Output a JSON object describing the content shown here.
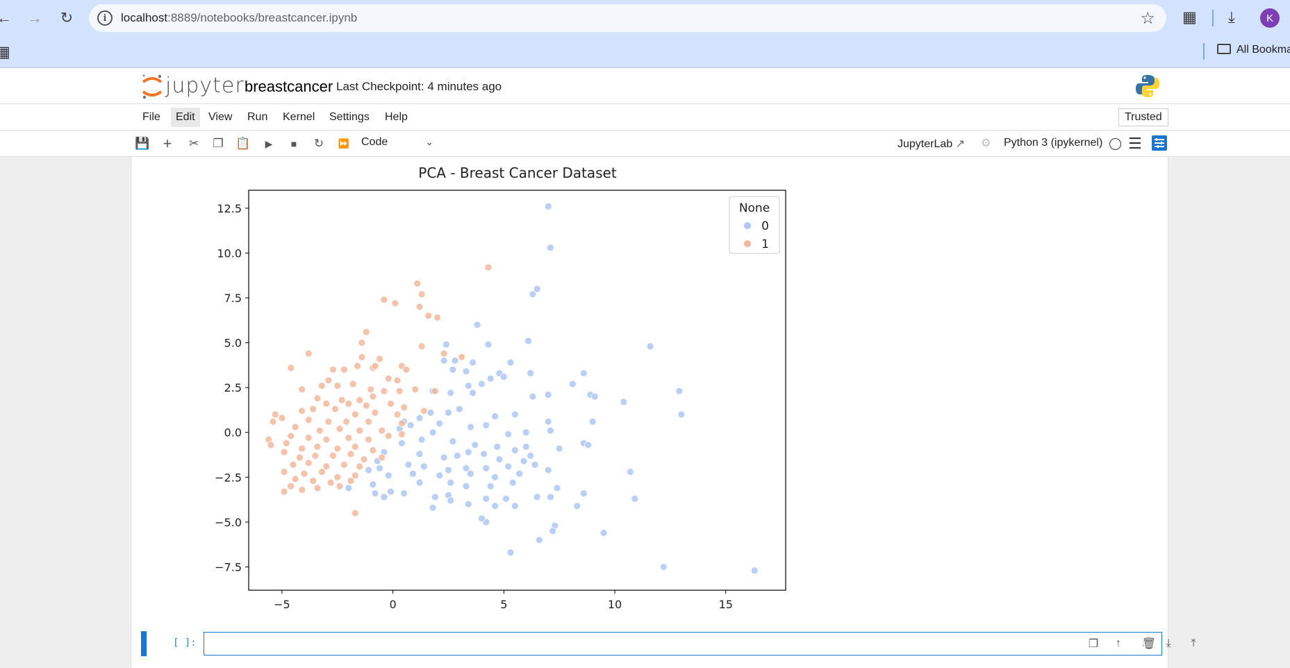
{
  "browser": {
    "url_host": "localhost",
    "url_path": ":8889/notebooks/breastcancer.ipynb",
    "avatar_letter": "K",
    "bookmarks_label": "All Bookma"
  },
  "header": {
    "app_name": "jupyter",
    "notebook_title": "breastcancer",
    "checkpoint": "Last Checkpoint: 4 minutes ago"
  },
  "menubar": {
    "items": [
      "File",
      "Edit",
      "View",
      "Run",
      "Kernel",
      "Settings",
      "Help"
    ],
    "trusted": "Trusted"
  },
  "toolbar": {
    "cell_type": "Code",
    "jupyterlab_link": "JupyterLab",
    "kernel": "Python 3 (ipykernel)"
  },
  "cell": {
    "prompt": "[ ]:"
  },
  "colors": {
    "class0": "#aec7f5",
    "class1": "#f3b79c",
    "accent": "#1976d2"
  },
  "chart_data": {
    "type": "scatter",
    "title": "PCA - Breast Cancer Dataset",
    "xlabel": "",
    "ylabel": "",
    "xlim": [
      -6.5,
      17.7
    ],
    "ylim": [
      -8.8,
      13.5
    ],
    "xticks": [
      -5,
      0,
      5,
      10,
      15
    ],
    "yticks": [
      -7.5,
      -5.0,
      -2.5,
      0.0,
      2.5,
      5.0,
      7.5,
      10.0,
      12.5
    ],
    "ytick_labels": [
      "−7.5",
      "−5.0",
      "−2.5",
      "0.0",
      "2.5",
      "5.0",
      "7.5",
      "10.0",
      "12.5"
    ],
    "xtick_labels": [
      "−5",
      "0",
      "5",
      "10",
      "15"
    ],
    "legend": {
      "title": "None",
      "placement": "top-right"
    },
    "series": [
      {
        "name": "0",
        "points": [
          [
            7.0,
            12.6
          ],
          [
            7.1,
            10.3
          ],
          [
            6.5,
            8.0
          ],
          [
            6.3,
            7.7
          ],
          [
            3.8,
            6.0
          ],
          [
            6.1,
            5.1
          ],
          [
            4.3,
            4.9
          ],
          [
            2.4,
            4.9
          ],
          [
            11.6,
            4.8
          ],
          [
            2.8,
            4.0
          ],
          [
            5.3,
            3.9
          ],
          [
            2.3,
            4.0
          ],
          [
            3.6,
            3.9
          ],
          [
            4.8,
            3.3
          ],
          [
            5.0,
            3.1
          ],
          [
            4.4,
            3.0
          ],
          [
            8.6,
            3.3
          ],
          [
            6.2,
            3.3
          ],
          [
            3.3,
            3.4
          ],
          [
            2.7,
            3.5
          ],
          [
            8.1,
            2.7
          ],
          [
            12.9,
            2.3
          ],
          [
            7.0,
            2.1
          ],
          [
            8.9,
            2.1
          ],
          [
            9.1,
            2.0
          ],
          [
            10.4,
            1.7
          ],
          [
            6.3,
            2.0
          ],
          [
            4.0,
            2.7
          ],
          [
            3.4,
            2.6
          ],
          [
            2.6,
            2.2
          ],
          [
            3.6,
            2.2
          ],
          [
            1.8,
            2.3
          ],
          [
            13.0,
            1.0
          ],
          [
            5.5,
            1.0
          ],
          [
            4.6,
            0.9
          ],
          [
            3.0,
            1.3
          ],
          [
            2.5,
            1.1
          ],
          [
            1.7,
            1.1
          ],
          [
            1.2,
            0.8
          ],
          [
            9.0,
            0.6
          ],
          [
            7.0,
            0.6
          ],
          [
            7.1,
            0.1
          ],
          [
            6.0,
            0.0
          ],
          [
            5.2,
            -0.1
          ],
          [
            4.2,
            0.4
          ],
          [
            3.5,
            0.3
          ],
          [
            2.1,
            0.5
          ],
          [
            1.8,
            0.0
          ],
          [
            0.8,
            0.4
          ],
          [
            0.5,
            0.6
          ],
          [
            0.3,
            0.2
          ],
          [
            8.6,
            -0.6
          ],
          [
            8.8,
            -0.7
          ],
          [
            7.5,
            -0.9
          ],
          [
            6.0,
            -0.8
          ],
          [
            5.5,
            -1.0
          ],
          [
            4.7,
            -0.8
          ],
          [
            3.7,
            -0.7
          ],
          [
            2.7,
            -0.5
          ],
          [
            1.3,
            -0.4
          ],
          [
            0.4,
            -0.6
          ],
          [
            6.2,
            -1.3
          ],
          [
            5.9,
            -1.6
          ],
          [
            4.8,
            -1.5
          ],
          [
            4.1,
            -1.2
          ],
          [
            3.4,
            -1.1
          ],
          [
            2.9,
            -1.3
          ],
          [
            2.3,
            -1.4
          ],
          [
            1.2,
            -1.2
          ],
          [
            -0.4,
            -1.1
          ],
          [
            -0.7,
            -1.6
          ],
          [
            6.4,
            -1.8
          ],
          [
            5.2,
            -1.9
          ],
          [
            4.2,
            -2.0
          ],
          [
            3.3,
            -2.0
          ],
          [
            2.5,
            -2.1
          ],
          [
            1.4,
            -1.9
          ],
          [
            0.7,
            -1.8
          ],
          [
            -0.6,
            -2.0
          ],
          [
            10.7,
            -2.2
          ],
          [
            7.0,
            -2.1
          ],
          [
            5.7,
            -2.3
          ],
          [
            4.6,
            -2.5
          ],
          [
            3.5,
            -2.3
          ],
          [
            2.1,
            -2.4
          ],
          [
            0.9,
            -2.3
          ],
          [
            -0.2,
            -2.4
          ],
          [
            -1.1,
            -2.1
          ],
          [
            7.4,
            -3.1
          ],
          [
            5.4,
            -2.8
          ],
          [
            4.4,
            -3.0
          ],
          [
            3.3,
            -3.0
          ],
          [
            2.6,
            -2.8
          ],
          [
            1.2,
            -2.8
          ],
          [
            -0.9,
            -2.9
          ],
          [
            -2.0,
            -3.1
          ],
          [
            10.9,
            -3.7
          ],
          [
            8.6,
            -3.4
          ],
          [
            7.1,
            -3.6
          ],
          [
            6.5,
            -3.6
          ],
          [
            5.1,
            -3.7
          ],
          [
            4.2,
            -3.7
          ],
          [
            2.5,
            -3.5
          ],
          [
            1.9,
            -3.6
          ],
          [
            0.5,
            -3.4
          ],
          [
            -0.1,
            -3.3
          ],
          [
            -0.8,
            -3.4
          ],
          [
            8.3,
            -4.1
          ],
          [
            5.5,
            -4.1
          ],
          [
            4.6,
            -4.1
          ],
          [
            3.4,
            -4.0
          ],
          [
            2.6,
            -3.8
          ],
          [
            1.8,
            -4.2
          ],
          [
            -0.4,
            -3.6
          ],
          [
            7.3,
            -5.2
          ],
          [
            7.2,
            -5.5
          ],
          [
            4.2,
            -5.0
          ],
          [
            4.0,
            -4.8
          ],
          [
            9.5,
            -5.6
          ],
          [
            6.6,
            -6.0
          ],
          [
            5.3,
            -6.7
          ],
          [
            12.2,
            -7.5
          ],
          [
            16.3,
            -7.7
          ]
        ]
      },
      {
        "name": "1",
        "points": [
          [
            4.3,
            9.2
          ],
          [
            1.1,
            8.3
          ],
          [
            1.3,
            7.7
          ],
          [
            -0.4,
            7.4
          ],
          [
            0.1,
            7.2
          ],
          [
            1.2,
            7.0
          ],
          [
            1.6,
            6.5
          ],
          [
            2.0,
            6.4
          ],
          [
            -1.2,
            5.6
          ],
          [
            -1.4,
            5.0
          ],
          [
            1.3,
            4.8
          ],
          [
            -0.6,
            4.1
          ],
          [
            -3.8,
            4.4
          ],
          [
            -1.4,
            4.2
          ],
          [
            2.3,
            4.4
          ],
          [
            3.1,
            4.2
          ],
          [
            -1.6,
            3.7
          ],
          [
            -0.9,
            3.6
          ],
          [
            -0.8,
            3.7
          ],
          [
            0.4,
            3.7
          ],
          [
            0.6,
            3.5
          ],
          [
            -4.6,
            3.6
          ],
          [
            -2.2,
            3.5
          ],
          [
            -2.7,
            3.5
          ],
          [
            -0.2,
            3.0
          ],
          [
            0.2,
            2.9
          ],
          [
            -2.9,
            2.9
          ],
          [
            -1.8,
            2.7
          ],
          [
            -2.5,
            2.6
          ],
          [
            -3.2,
            2.6
          ],
          [
            -4.1,
            2.4
          ],
          [
            -1.0,
            2.4
          ],
          [
            -0.4,
            2.3
          ],
          [
            0.3,
            2.3
          ],
          [
            1.0,
            2.4
          ],
          [
            1.9,
            2.3
          ],
          [
            -0.9,
            2.0
          ],
          [
            -1.5,
            1.8
          ],
          [
            -2.3,
            1.8
          ],
          [
            -3.4,
            1.9
          ],
          [
            -3.0,
            1.6
          ],
          [
            -2.0,
            1.6
          ],
          [
            -1.2,
            1.5
          ],
          [
            -0.1,
            1.6
          ],
          [
            0.5,
            1.4
          ],
          [
            1.4,
            1.2
          ],
          [
            -4.1,
            1.2
          ],
          [
            -3.6,
            1.3
          ],
          [
            -2.6,
            1.3
          ],
          [
            -1.7,
            1.0
          ],
          [
            -0.8,
            1.1
          ],
          [
            0.2,
            1.0
          ],
          [
            -5.3,
            1.0
          ],
          [
            -5.0,
            0.8
          ],
          [
            -3.8,
            0.7
          ],
          [
            -2.9,
            0.6
          ],
          [
            -2.1,
            0.6
          ],
          [
            -1.1,
            0.6
          ],
          [
            0.4,
            0.5
          ],
          [
            -5.4,
            0.6
          ],
          [
            -4.4,
            0.3
          ],
          [
            -3.3,
            0.1
          ],
          [
            -2.4,
            0.2
          ],
          [
            -1.5,
            0.1
          ],
          [
            -0.5,
            0.1
          ],
          [
            0.4,
            -0.1
          ],
          [
            -4.6,
            -0.2
          ],
          [
            -3.8,
            -0.3
          ],
          [
            -3.0,
            -0.4
          ],
          [
            -2.0,
            -0.3
          ],
          [
            -1.1,
            -0.4
          ],
          [
            -0.2,
            -0.2
          ],
          [
            -5.6,
            -0.4
          ],
          [
            -5.5,
            -0.7
          ],
          [
            -4.8,
            -0.6
          ],
          [
            -4.1,
            -0.9
          ],
          [
            -3.4,
            -0.8
          ],
          [
            -2.5,
            -0.9
          ],
          [
            -1.7,
            -0.8
          ],
          [
            -0.9,
            -1.0
          ],
          [
            -4.9,
            -1.1
          ],
          [
            -4.2,
            -1.4
          ],
          [
            -3.5,
            -1.3
          ],
          [
            -2.7,
            -1.3
          ],
          [
            -1.9,
            -1.2
          ],
          [
            -1.3,
            -1.5
          ],
          [
            -0.5,
            -1.4
          ],
          [
            -4.5,
            -1.8
          ],
          [
            -3.8,
            -1.7
          ],
          [
            -3.0,
            -1.9
          ],
          [
            -2.2,
            -1.8
          ],
          [
            -1.5,
            -1.9
          ],
          [
            -4.9,
            -2.2
          ],
          [
            -4.0,
            -2.3
          ],
          [
            -3.2,
            -2.2
          ],
          [
            -2.5,
            -2.5
          ],
          [
            -1.7,
            -2.4
          ],
          [
            -4.4,
            -2.6
          ],
          [
            -3.6,
            -2.7
          ],
          [
            -2.8,
            -2.8
          ],
          [
            -1.9,
            -2.7
          ],
          [
            -4.6,
            -3.0
          ],
          [
            -3.4,
            -3.1
          ],
          [
            -2.4,
            -3.0
          ],
          [
            -4.9,
            -3.3
          ],
          [
            -4.1,
            -3.2
          ],
          [
            -1.7,
            -4.5
          ]
        ]
      }
    ]
  }
}
